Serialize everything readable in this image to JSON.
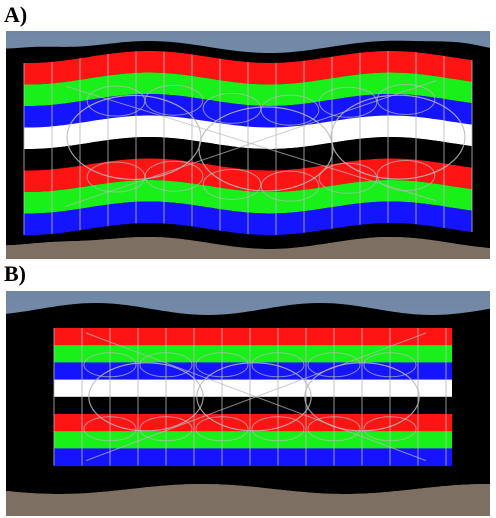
{
  "panels": [
    {
      "label": "A)"
    },
    {
      "label": "B)"
    }
  ],
  "colors": {
    "sky": "#6f86a5",
    "sky_light": "#9aa9bd",
    "ground": "#7e6f63",
    "ground_dark": "#5f5248",
    "frame": "#000000",
    "stripe_red": "#ff1414",
    "stripe_green": "#19f019",
    "stripe_blue": "#1414ff",
    "stripe_white": "#ffffff",
    "stripe_black": "#000000",
    "grid_line": "#b9b9b9"
  },
  "stripe_pattern": [
    "red",
    "green",
    "blue",
    "white",
    "black",
    "red",
    "green",
    "blue"
  ]
}
